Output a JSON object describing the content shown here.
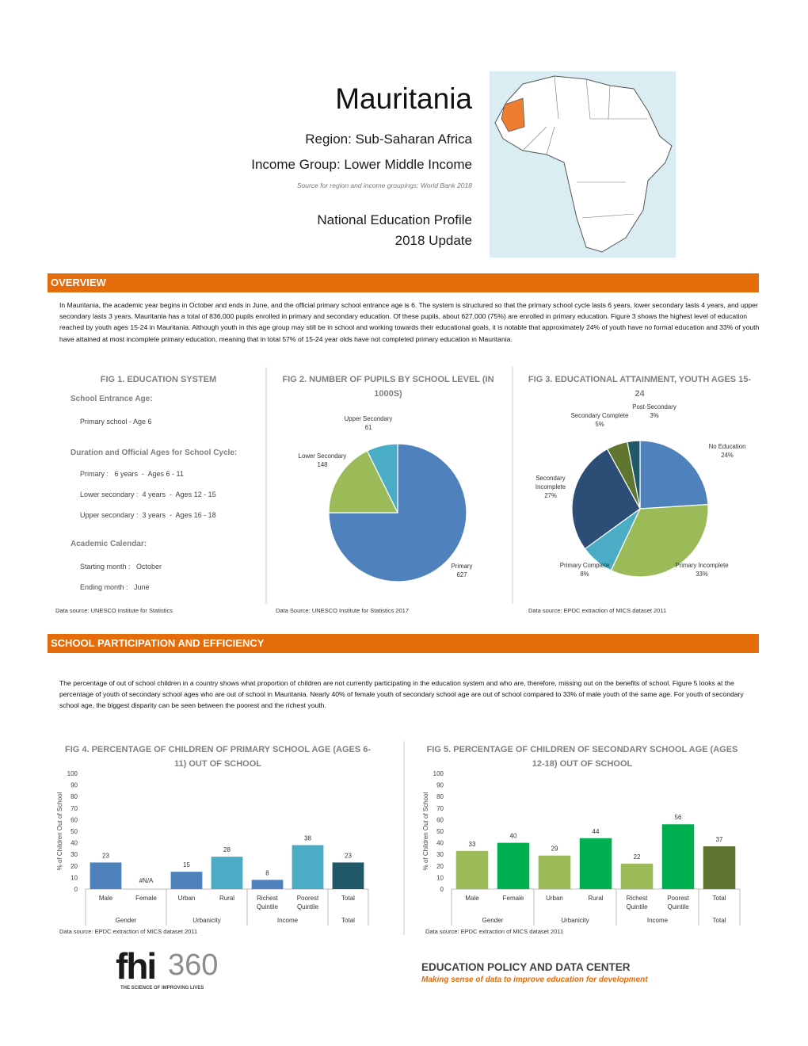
{
  "header": {
    "title": "Mauritania",
    "region": "Region: Sub-Saharan Africa",
    "income": "Income Group: Lower Middle Income",
    "source": "Source for region and income groupings: World Bank 2018",
    "profile": "National Education Profile",
    "update": "2018 Update"
  },
  "overview": {
    "heading": "OVERVIEW",
    "text": "In Mauritania, the academic year begins in October and ends in June, and the official primary school entrance age is 6. The system is structured so that the primary school cycle lasts 6 years, lower secondary lasts 4 years, and upper secondary lasts 3 years. Mauritania has a total of 836,000 pupils enrolled in primary and secondary education. Of these pupils, about 627,000 (75%) are enrolled in primary education. Figure 3 shows the highest level of education reached by youth ages 15-24 in Mauritania. Although youth in this age group may still be in school and working towards their educational goals, it is notable that approximately 24% of youth have no formal education and 33% of youth have attained at most incomplete primary education, meaning that in total 57% of 15-24 year olds have not completed primary education in Mauritania."
  },
  "fig1": {
    "title": "FIG 1. EDUCATION SYSTEM",
    "entrance_label": "School Entrance Age:",
    "entrance": "Primary school - Age 6",
    "duration_label": "Duration and Official Ages for School Cycle:",
    "cycles": [
      "Primary :   6 years  -  Ages 6 - 11",
      "Lower secondary :  4 years  -  Ages 12 - 15",
      "Upper secondary :  3 years  -  Ages 16 - 18"
    ],
    "calendar_label": "Academic Calendar:",
    "start": "Starting month :   October",
    "end": "Ending month :   June",
    "source": "Data source: UNESCO Institute for Statistics"
  },
  "participation": {
    "heading": "SCHOOL PARTICIPATION AND EFFICIENCY",
    "text": "The percentage of out of school children in a country shows what proportion of children are not currently participating in the education system and who are, therefore, missing out on the benefits of school. Figure 5 looks at the percentage of youth of secondary school ages who are out of school in Mauritania. Nearly 40% of female youth of secondary school age are out of school compared to 33% of male youth of the same age.  For youth of secondary school age, the biggest disparity can be seen between the poorest and the richest youth."
  },
  "chart_data": [
    {
      "type": "pie",
      "title": "FIG 2. NUMBER OF PUPILS BY SCHOOL LEVEL (IN 1000S)",
      "categories": [
        "Primary",
        "Lower Secondary",
        "Upper Secondary"
      ],
      "values": [
        627,
        148,
        61
      ],
      "colors": [
        "#4f81bd",
        "#9bbb59",
        "#4bacc6"
      ],
      "source": "Data Source: UNESCO Institute for Statistics 2017"
    },
    {
      "type": "pie",
      "title": "FIG 3. EDUCATIONAL ATTAINMENT, YOUTH AGES 15-24",
      "categories": [
        "No Education",
        "Primary Incomplete",
        "Primary Complete",
        "Secondary Incomplete",
        "Secondary Complete",
        "Post-Secondary"
      ],
      "values": [
        24,
        33,
        8,
        27,
        5,
        3
      ],
      "value_labels": [
        "24%",
        "33%",
        "8%",
        "27%",
        "5%",
        "3%"
      ],
      "colors": [
        "#4f81bd",
        "#9bbb59",
        "#4bacc6",
        "#2c4d75",
        "#5f7530",
        "#215968"
      ],
      "source": "Data source: EPDC extraction of MICS dataset  2011"
    },
    {
      "type": "bar",
      "title": "FIG 4. PERCENTAGE OF CHILDREN OF PRIMARY SCHOOL AGE (AGES 6-11) OUT OF SCHOOL",
      "y_label": "% of Children Out of School",
      "categories": [
        "Male",
        "Female",
        "Urban",
        "Rural",
        "Richest Quintile",
        "Poorest Quintile",
        "Total"
      ],
      "values": [
        23,
        null,
        15,
        28,
        8,
        38,
        23
      ],
      "value_labels": [
        "23",
        "#N/A",
        "15",
        "28",
        "8",
        "38",
        "23"
      ],
      "colors": [
        "#4f81bd",
        "#4f81bd",
        "#4f81bd",
        "#4bacc6",
        "#4f81bd",
        "#4bacc6",
        "#215868"
      ],
      "groups": [
        "Gender",
        "Urbanicity",
        "Income",
        "Total"
      ],
      "ylim": [
        0,
        100
      ],
      "yticks": [
        0,
        10,
        20,
        30,
        40,
        50,
        60,
        70,
        80,
        90,
        100
      ],
      "source": "Data source: EPDC extraction of MICS dataset  2011"
    },
    {
      "type": "bar",
      "title": "FIG 5. PERCENTAGE OF CHILDREN OF SECONDARY SCHOOL AGE (AGES 12-18) OUT OF SCHOOL",
      "y_label": "% of Children Out of School",
      "categories": [
        "Male",
        "Female",
        "Urban",
        "Rural",
        "Richest Quintile",
        "Poorest Quintile",
        "Total"
      ],
      "values": [
        33,
        40,
        29,
        44,
        22,
        56,
        37
      ],
      "colors": [
        "#9bbb59",
        "#00b050",
        "#9bbb59",
        "#00b050",
        "#9bbb59",
        "#00b050",
        "#5f7530"
      ],
      "groups": [
        "Gender",
        "Urbanicity",
        "Income",
        "Total"
      ],
      "ylim": [
        0,
        100
      ],
      "yticks": [
        0,
        10,
        20,
        30,
        40,
        50,
        60,
        70,
        80,
        90,
        100
      ],
      "source": "Data source: EPDC extraction of MICS dataset  2011"
    }
  ],
  "footer": {
    "logo_main": "fhi",
    "logo_number": "360",
    "logo_tagline": "THE SCIENCE OF IMPROVING LIVES",
    "org": "EDUCATION POLICY AND DATA CENTER",
    "org_tagline": "Making sense of data to improve education for development"
  }
}
